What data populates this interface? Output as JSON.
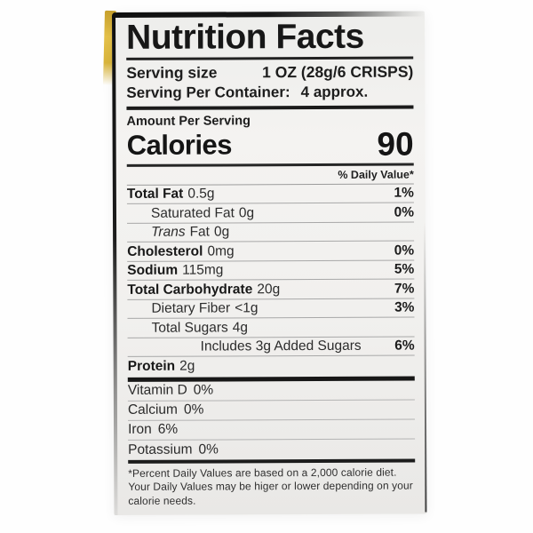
{
  "label": {
    "title": "Nutrition Facts",
    "serving_size_label": "Serving size",
    "serving_size_value": "1 OZ (28g/6 CRISPS)",
    "servings_per_container_label": "Serving Per Container:",
    "servings_per_container_value": "4 approx.",
    "amount_per_serving": "Amount Per Serving",
    "calories_label": "Calories",
    "calories_value": "90",
    "daily_value_header": "% Daily Value*",
    "nutrients": [
      {
        "name": "Total Fat",
        "amount": "0.5g",
        "dv": "1%"
      },
      {
        "name": "Saturated Fat",
        "amount": "0g",
        "dv": "0%"
      },
      {
        "name": "Trans",
        "name2": "Fat",
        "amount": "0g",
        "dv": ""
      },
      {
        "name": "Cholesterol",
        "amount": "0mg",
        "dv": "0%"
      },
      {
        "name": "Sodium",
        "amount": "115mg",
        "dv": "5%"
      },
      {
        "name": "Total Carbohydrate",
        "amount": "20g",
        "dv": "7%"
      },
      {
        "name": "Dietary Fiber",
        "amount": "<1g",
        "dv": "3%"
      },
      {
        "name": "Total Sugars",
        "amount": "4g",
        "dv": ""
      },
      {
        "name": "Includes 3g Added Sugars",
        "amount": "",
        "dv": "6%"
      },
      {
        "name": "Protein",
        "amount": "2g",
        "dv": ""
      }
    ],
    "vitamins": [
      {
        "name": "Vitamin D",
        "value": "0%"
      },
      {
        "name": "Calcium",
        "value": "0%"
      },
      {
        "name": "Iron",
        "value": "6%"
      },
      {
        "name": "Potassium",
        "value": "0%"
      }
    ],
    "footnote": {
      "line1": "*Percent Daily Values are based on a 2,000 calorie diet.",
      "line2": "Your Daily Values may be higer or lower depending on your",
      "line3": "calorie needs."
    }
  },
  "colors": {
    "package_edge_yellow": "#d9b53c",
    "label_background": "#efeeec",
    "rule_black": "#1b1b1b",
    "hairline_gray": "#a8a8a8",
    "text_black": "#1d1d1d"
  }
}
